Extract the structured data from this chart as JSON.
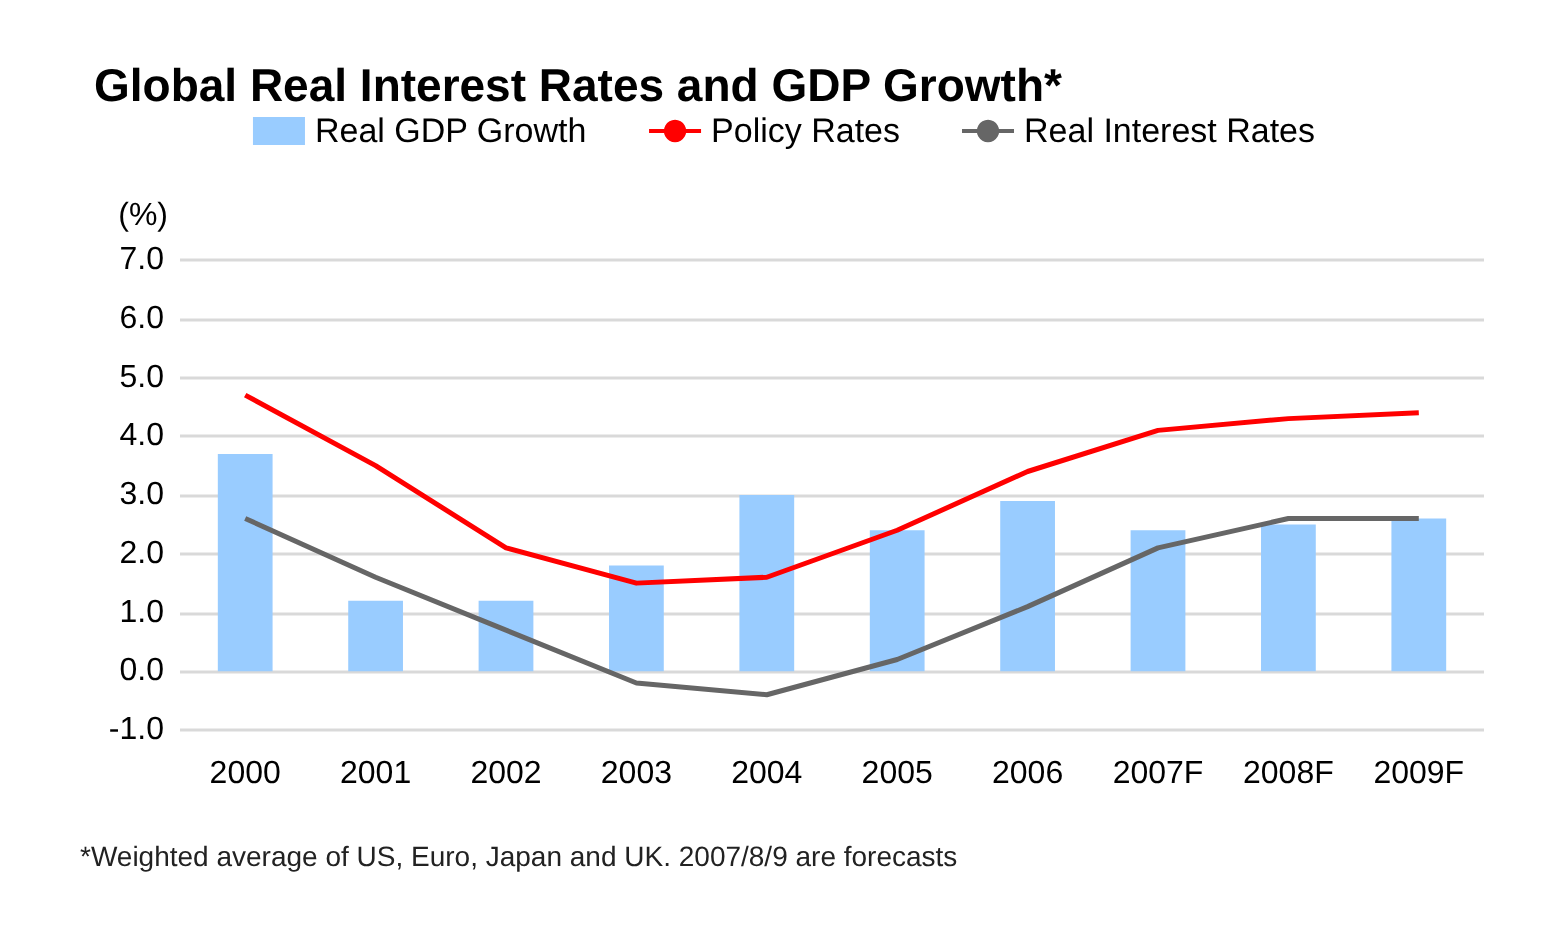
{
  "chart_data": {
    "type": "bar",
    "title": "Global Real Interest Rates and GDP Growth*",
    "ylabel": "(%)",
    "categories": [
      "2000",
      "2001",
      "2002",
      "2003",
      "2004",
      "2005",
      "2006",
      "2007F",
      "2008F",
      "2009F"
    ],
    "series": [
      {
        "name": "Real GDP Growth",
        "color": "#99ccff",
        "values": [
          3.7,
          1.2,
          1.2,
          1.8,
          3.0,
          2.4,
          2.9,
          2.4,
          2.5,
          2.6
        ]
      },
      {
        "name": "Policy Rates",
        "type": "line",
        "color": "#ff0000",
        "values": [
          4.7,
          3.5,
          2.1,
          1.5,
          1.6,
          2.4,
          3.4,
          4.1,
          4.3,
          4.4
        ]
      },
      {
        "name": "Real Interest Rates",
        "type": "line",
        "color": "#666666",
        "values": [
          2.6,
          1.6,
          0.7,
          -0.2,
          -0.4,
          0.2,
          1.1,
          2.1,
          2.6,
          2.6
        ]
      }
    ],
    "ylim": [
      -1,
      7
    ],
    "yticks": [
      {
        "value": -1,
        "label": "-1.0"
      },
      {
        "value": 0,
        "label": "0.0"
      },
      {
        "value": 1,
        "label": "1.0"
      },
      {
        "value": 2,
        "label": "2.0"
      },
      {
        "value": 3,
        "label": "3.0"
      },
      {
        "value": 4,
        "label": "4.0"
      },
      {
        "value": 5,
        "label": "5.0"
      },
      {
        "value": 6,
        "label": "6.0"
      },
      {
        "value": 7,
        "label": "7.0"
      }
    ],
    "grid": "y",
    "legend": "top",
    "marker": "none",
    "line_style": "solid",
    "annotations": [
      "*Weighted average of US, Euro, Japan and UK. 2007/8/9 are forecasts"
    ]
  }
}
